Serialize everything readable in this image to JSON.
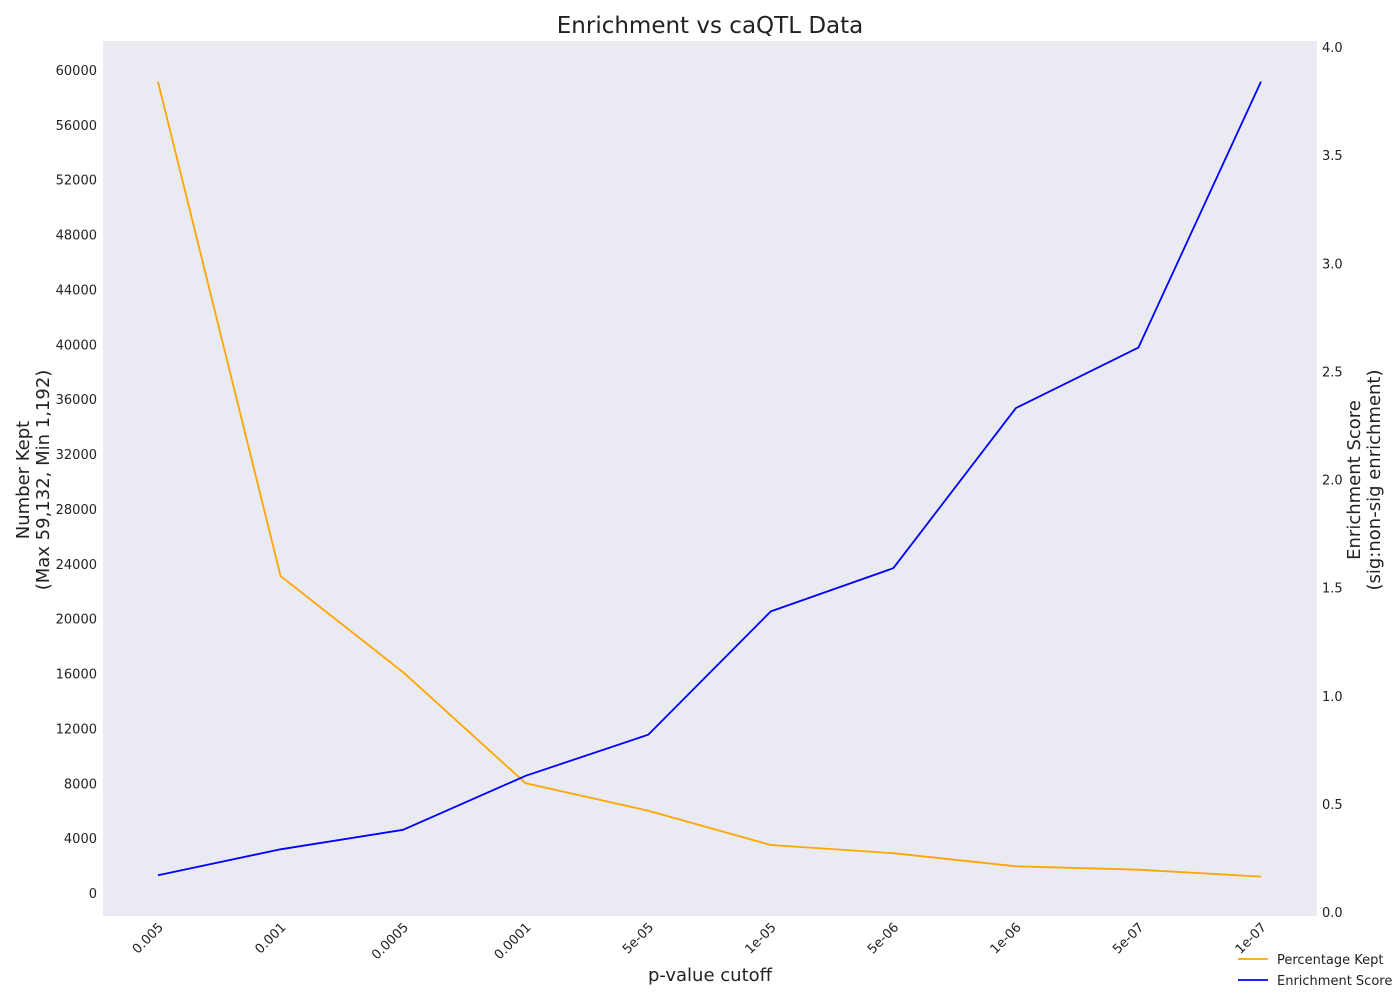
{
  "chart_data": {
    "type": "line",
    "title": "Enrichment vs caQTL Data",
    "xlabel": "p-value cutoff",
    "ylabel_left": [
      "Number Kept",
      "(Max 59,132, Min 1,192)"
    ],
    "ylabel_right": [
      "Enrichment Score",
      "(sig:non-sig enrichment)"
    ],
    "categories": [
      "0.005",
      "0.001",
      "0.0005",
      "0.0001",
      "5e-05",
      "1e-05",
      "5e-06",
      "1e-06",
      "5e-07",
      "1e-07"
    ],
    "ylim_left": [
      -1650,
      62100
    ],
    "yticks_left": [
      0,
      4000,
      8000,
      12000,
      16000,
      20000,
      24000,
      28000,
      32000,
      36000,
      40000,
      44000,
      48000,
      52000,
      56000,
      60000
    ],
    "ylim_right": [
      0,
      4.0
    ],
    "yticks_right": [
      "0.0",
      "0.5",
      "1.0",
      "1.5",
      "2.0",
      "2.5",
      "3.0",
      "3.5",
      "4.0"
    ],
    "grid": false,
    "legend_position": "lower-right",
    "series": [
      {
        "name": "Percentage Kept",
        "axis": "left",
        "color": "#FFA500",
        "values": [
          59132,
          23100,
          16100,
          8000,
          6000,
          3500,
          2900,
          1950,
          1700,
          1192
        ]
      },
      {
        "name": "Enrichment Score",
        "axis": "right",
        "color": "#0000FF",
        "values": [
          0.17,
          0.29,
          0.38,
          0.63,
          0.82,
          1.39,
          1.59,
          2.33,
          2.61,
          3.84
        ]
      }
    ]
  }
}
